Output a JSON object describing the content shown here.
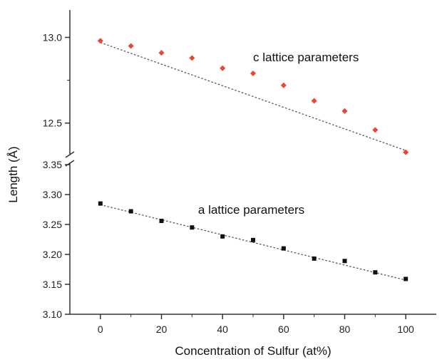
{
  "chart_data": {
    "type": "scatter",
    "title": "",
    "xlabel": "Concentration of Sulfur (at%)",
    "ylabel": "Length (Å)",
    "xlim": [
      -10,
      110
    ],
    "x_ticks": [
      0,
      20,
      40,
      60,
      80,
      100
    ],
    "x_tick_labels": [
      "0",
      "20",
      "40",
      "60",
      "80",
      "100"
    ],
    "y_axis_break": true,
    "panels": [
      {
        "id": "upper",
        "ylim": [
          12.32,
          13.16
        ],
        "y_ticks": [
          12.5,
          13.0
        ],
        "y_tick_labels": [
          "12.5",
          "13.0"
        ]
      },
      {
        "id": "lower",
        "ylim": [
          3.1,
          3.35
        ],
        "y_ticks": [
          3.1,
          3.15,
          3.2,
          3.25,
          3.3,
          3.35
        ],
        "y_tick_labels": [
          "3.10",
          "3.15",
          "3.20",
          "3.25",
          "3.30",
          "3.35"
        ]
      }
    ],
    "series": [
      {
        "panel": "upper",
        "marker": "diamond",
        "color": "#ee4433",
        "x": [
          0,
          10,
          20,
          30,
          40,
          50,
          60,
          70,
          80,
          90,
          100
        ],
        "y": [
          12.98,
          12.95,
          12.91,
          12.88,
          12.82,
          12.79,
          12.72,
          12.63,
          12.57,
          12.46,
          12.33
        ],
        "fit_line": {
          "x": [
            0,
            100
          ],
          "y": [
            12.97,
            12.34
          ],
          "style": "dotted",
          "color": "#555555"
        }
      },
      {
        "panel": "lower",
        "marker": "square",
        "color": "#111111",
        "x": [
          0,
          10,
          20,
          30,
          40,
          50,
          60,
          70,
          80,
          90,
          100
        ],
        "y": [
          3.285,
          3.272,
          3.256,
          3.245,
          3.23,
          3.224,
          3.21,
          3.193,
          3.189,
          3.17,
          3.159
        ],
        "fit_line": {
          "x": [
            0,
            100
          ],
          "y": [
            3.283,
            3.157
          ],
          "style": "dotted",
          "color": "#555555"
        }
      }
    ],
    "annotations": [
      {
        "panel": "upper",
        "text": "c lattice parameters",
        "x": 50,
        "y": 12.86
      },
      {
        "panel": "lower",
        "text": "a lattice parameters",
        "x": 32,
        "y": 3.268
      }
    ]
  }
}
